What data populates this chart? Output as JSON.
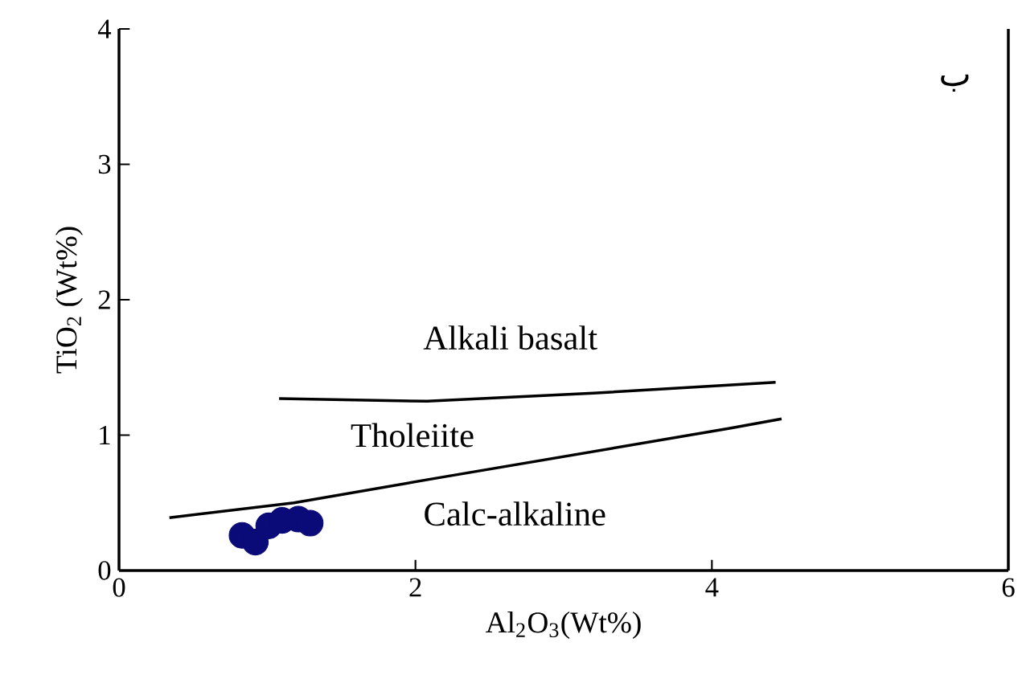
{
  "chart_data": {
    "type": "scatter",
    "xlabel": "Al$_{2}$O$_{3}$(Wt%)",
    "ylabel": "TiO$_{2}$ (Wt%)",
    "xlim": [
      0,
      6
    ],
    "ylim": [
      0,
      4
    ],
    "xticks": [
      0,
      2,
      4,
      6
    ],
    "yticks": [
      0,
      1,
      2,
      3,
      4
    ],
    "marker": "circle",
    "series": [
      {
        "color": "#0a0a78",
        "x": [
          0.83,
          0.92,
          1.01,
          1.1,
          1.21,
          1.29
        ],
        "values": [
          0.26,
          0.21,
          0.33,
          0.37,
          0.38,
          0.35
        ]
      },
      {
        "type": "line",
        "color": "#000000",
        "marker": "none",
        "line_style": "solid",
        "x": [
          1.08,
          2.08,
          3.2,
          4.43
        ],
        "values": [
          1.27,
          1.25,
          1.31,
          1.39
        ]
      },
      {
        "type": "line",
        "color": "#000000",
        "marker": "none",
        "line_style": "solid",
        "x": [
          0.34,
          1.18,
          2.13,
          4.12,
          4.47
        ],
        "values": [
          0.39,
          0.5,
          0.68,
          1.05,
          1.12
        ]
      }
    ],
    "annotations": [
      "Alkali basalt",
      "Tholeiite",
      "Calc-alkaline",
      "ب"
    ]
  }
}
